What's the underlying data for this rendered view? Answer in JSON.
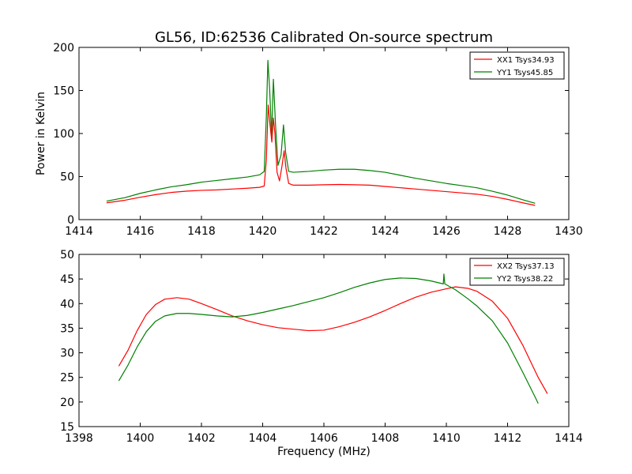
{
  "figure": {
    "title": "GL56, ID:62536 Calibrated On-source spectrum",
    "xlabel": "Frequency (MHz)",
    "ylabel": "Power in Kelvin"
  },
  "chart_data": [
    {
      "type": "line",
      "xlim": [
        1414,
        1430
      ],
      "ylim": [
        0,
        200
      ],
      "xticks": [
        "1414",
        "1416",
        "1418",
        "1420",
        "1422",
        "1424",
        "1426",
        "1428",
        "1430"
      ],
      "yticks": [
        "0",
        "50",
        "100",
        "150",
        "200"
      ],
      "legend_position": "top-right",
      "series": [
        {
          "name": "XX1 Tsys34.93",
          "color": "#ff0000",
          "points": [
            [
              1414.9,
              19.5
            ],
            [
              1415.5,
              22.5
            ],
            [
              1416.0,
              26.0
            ],
            [
              1416.5,
              29.0
            ],
            [
              1417.0,
              31.5
            ],
            [
              1417.5,
              33.0
            ],
            [
              1418.0,
              34.0
            ],
            [
              1418.5,
              34.5
            ],
            [
              1419.0,
              35.5
            ],
            [
              1419.5,
              36.5
            ],
            [
              1419.9,
              37.5
            ],
            [
              1420.05,
              39.0
            ],
            [
              1420.12,
              70.0
            ],
            [
              1420.18,
              133.0
            ],
            [
              1420.24,
              110.0
            ],
            [
              1420.3,
              90.0
            ],
            [
              1420.35,
              118.0
            ],
            [
              1420.4,
              100.0
            ],
            [
              1420.47,
              55.0
            ],
            [
              1420.55,
              45.0
            ],
            [
              1420.63,
              62.0
            ],
            [
              1420.7,
              80.0
            ],
            [
              1420.76,
              60.0
            ],
            [
              1420.85,
              42.0
            ],
            [
              1421.0,
              40.0
            ],
            [
              1421.5,
              40.0
            ],
            [
              1422.0,
              40.5
            ],
            [
              1422.5,
              40.8
            ],
            [
              1423.0,
              40.5
            ],
            [
              1423.5,
              40.0
            ],
            [
              1424.0,
              38.5
            ],
            [
              1424.5,
              37.0
            ],
            [
              1425.0,
              35.5
            ],
            [
              1425.5,
              34.0
            ],
            [
              1426.0,
              32.5
            ],
            [
              1426.5,
              31.0
            ],
            [
              1427.0,
              29.5
            ],
            [
              1427.5,
              27.0
            ],
            [
              1428.0,
              23.5
            ],
            [
              1428.5,
              19.5
            ],
            [
              1428.9,
              16.5
            ]
          ]
        },
        {
          "name": "YY1 Tsys45.85",
          "color": "#008000",
          "points": [
            [
              1414.9,
              21.5
            ],
            [
              1415.5,
              25.5
            ],
            [
              1416.0,
              30.5
            ],
            [
              1416.5,
              34.5
            ],
            [
              1417.0,
              38.0
            ],
            [
              1417.5,
              40.5
            ],
            [
              1418.0,
              43.5
            ],
            [
              1418.5,
              45.5
            ],
            [
              1419.0,
              47.5
            ],
            [
              1419.5,
              49.5
            ],
            [
              1419.9,
              52.0
            ],
            [
              1420.05,
              56.0
            ],
            [
              1420.12,
              120.0
            ],
            [
              1420.17,
              185.0
            ],
            [
              1420.23,
              150.0
            ],
            [
              1420.29,
              98.0
            ],
            [
              1420.35,
              163.0
            ],
            [
              1420.42,
              110.0
            ],
            [
              1420.5,
              63.0
            ],
            [
              1420.6,
              75.0
            ],
            [
              1420.68,
              110.0
            ],
            [
              1420.75,
              78.0
            ],
            [
              1420.85,
              56.0
            ],
            [
              1421.0,
              55.0
            ],
            [
              1421.5,
              56.0
            ],
            [
              1422.0,
              57.5
            ],
            [
              1422.5,
              58.5
            ],
            [
              1423.0,
              58.5
            ],
            [
              1423.5,
              57.0
            ],
            [
              1424.0,
              55.0
            ],
            [
              1424.5,
              51.5
            ],
            [
              1425.0,
              48.0
            ],
            [
              1425.5,
              45.0
            ],
            [
              1426.0,
              42.0
            ],
            [
              1426.5,
              39.5
            ],
            [
              1427.0,
              37.0
            ],
            [
              1427.5,
              33.0
            ],
            [
              1428.0,
              28.5
            ],
            [
              1428.5,
              23.0
            ],
            [
              1428.9,
              19.0
            ]
          ]
        }
      ]
    },
    {
      "type": "line",
      "xlim": [
        1398,
        1414
      ],
      "ylim": [
        15,
        50
      ],
      "xticks": [
        "1398",
        "1400",
        "1402",
        "1404",
        "1406",
        "1408",
        "1410",
        "1412",
        "1414"
      ],
      "yticks": [
        "15",
        "20",
        "25",
        "30",
        "35",
        "40",
        "45",
        "50"
      ],
      "legend_position": "top-right",
      "series": [
        {
          "name": "XX2 Tsys37.13",
          "color": "#ff0000",
          "points": [
            [
              1399.3,
              27.3
            ],
            [
              1399.6,
              30.5
            ],
            [
              1399.9,
              34.5
            ],
            [
              1400.2,
              37.8
            ],
            [
              1400.5,
              39.8
            ],
            [
              1400.8,
              40.9
            ],
            [
              1401.2,
              41.2
            ],
            [
              1401.6,
              40.9
            ],
            [
              1402.0,
              40.0
            ],
            [
              1402.5,
              38.8
            ],
            [
              1403.0,
              37.5
            ],
            [
              1403.5,
              36.5
            ],
            [
              1404.0,
              35.7
            ],
            [
              1404.5,
              35.1
            ],
            [
              1405.0,
              34.8
            ],
            [
              1405.5,
              34.5
            ],
            [
              1406.0,
              34.6
            ],
            [
              1406.5,
              35.3
            ],
            [
              1407.0,
              36.2
            ],
            [
              1407.5,
              37.3
            ],
            [
              1408.0,
              38.6
            ],
            [
              1408.5,
              40.0
            ],
            [
              1409.0,
              41.3
            ],
            [
              1409.5,
              42.3
            ],
            [
              1410.0,
              43.0
            ],
            [
              1410.3,
              43.4
            ],
            [
              1410.7,
              43.1
            ],
            [
              1411.0,
              42.5
            ],
            [
              1411.5,
              40.5
            ],
            [
              1412.0,
              37.0
            ],
            [
              1412.5,
              31.5
            ],
            [
              1413.0,
              25.0
            ],
            [
              1413.3,
              21.7
            ]
          ]
        },
        {
          "name": "YY2 Tsys38.22",
          "color": "#008000",
          "points": [
            [
              1399.3,
              24.3
            ],
            [
              1399.6,
              27.5
            ],
            [
              1399.9,
              31.2
            ],
            [
              1400.2,
              34.3
            ],
            [
              1400.5,
              36.4
            ],
            [
              1400.8,
              37.5
            ],
            [
              1401.2,
              38.0
            ],
            [
              1401.6,
              38.0
            ],
            [
              1402.0,
              37.8
            ],
            [
              1402.5,
              37.5
            ],
            [
              1403.0,
              37.3
            ],
            [
              1403.5,
              37.6
            ],
            [
              1404.0,
              38.2
            ],
            [
              1404.5,
              38.9
            ],
            [
              1405.0,
              39.6
            ],
            [
              1405.5,
              40.4
            ],
            [
              1406.0,
              41.2
            ],
            [
              1406.5,
              42.2
            ],
            [
              1407.0,
              43.3
            ],
            [
              1407.5,
              44.2
            ],
            [
              1408.0,
              44.9
            ],
            [
              1408.5,
              45.2
            ],
            [
              1409.0,
              45.1
            ],
            [
              1409.5,
              44.6
            ],
            [
              1409.9,
              44.0
            ],
            [
              1409.92,
              46.0
            ],
            [
              1409.95,
              44.0
            ],
            [
              1410.3,
              42.8
            ],
            [
              1410.7,
              41.0
            ],
            [
              1411.0,
              39.5
            ],
            [
              1411.5,
              36.5
            ],
            [
              1412.0,
              32.0
            ],
            [
              1412.5,
              26.0
            ],
            [
              1412.9,
              21.0
            ],
            [
              1413.0,
              19.7
            ]
          ]
        }
      ]
    }
  ]
}
